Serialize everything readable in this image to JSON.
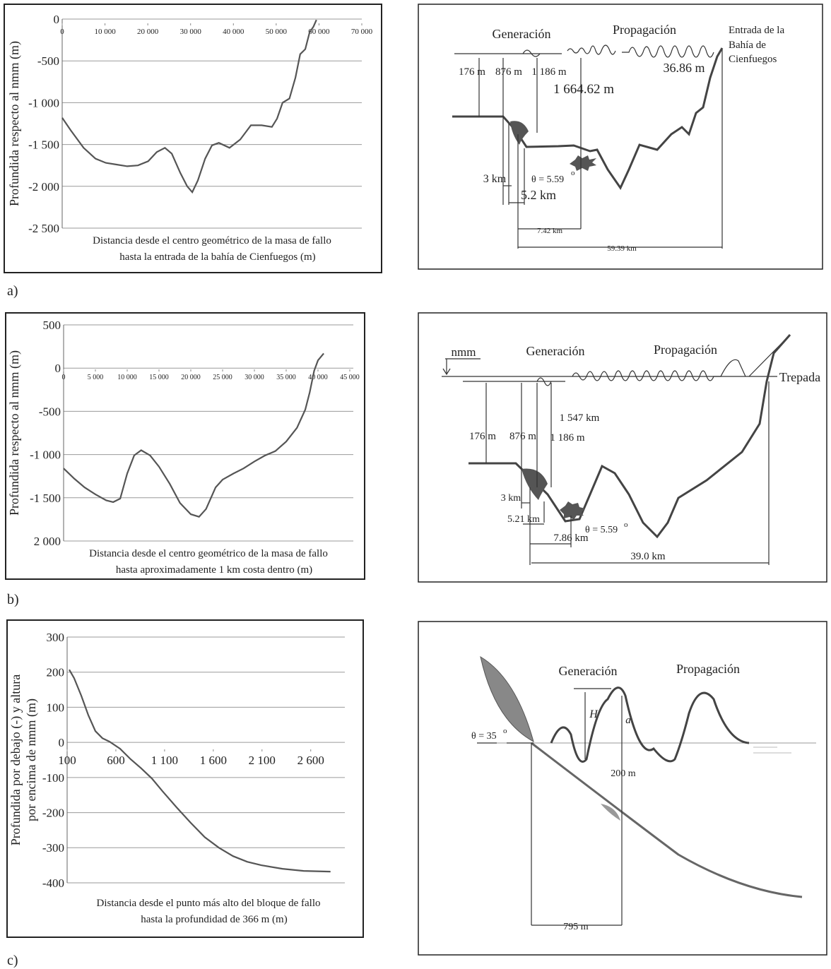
{
  "chart_data": [
    {
      "type": "line",
      "color": "#555555",
      "grid": true,
      "ylabel": [
        "Profundida respecto al nmm (m)"
      ],
      "xlabel": [
        "Distancia desde el centro geométrico de la masa de fallo",
        "hasta la entrada de la bahía de Cienfuegos (m)"
      ],
      "xlim": [
        0,
        70000
      ],
      "ylim": [
        -2500,
        0
      ],
      "xticks": [
        0,
        {
          "value": 10000,
          "label": "10 000"
        },
        {
          "value": 20000,
          "label": "20 000"
        },
        {
          "value": 30000,
          "label": "30 000"
        },
        {
          "value": 40000,
          "label": "40 000"
        },
        {
          "value": 50000,
          "label": "50 000"
        },
        {
          "value": 60000,
          "label": "60 000"
        },
        {
          "value": 70000,
          "label": "70 000"
        }
      ],
      "yticks": [
        0,
        -500,
        {
          "value": -1000,
          "label": "-1 000"
        },
        {
          "value": -1500,
          "label": "-1 500"
        },
        {
          "value": -2000,
          "label": "-2 000"
        },
        {
          "value": -2500,
          "label": "-2 500"
        }
      ],
      "x": [
        0,
        2000,
        5000,
        7800,
        10200,
        12700,
        15200,
        17700,
        20100,
        22100,
        24000,
        25600,
        27600,
        29200,
        30400,
        31700,
        33400,
        35000,
        36600,
        39100,
        41600,
        44100,
        46600,
        49000,
        50200,
        51500,
        53100,
        54500,
        55600,
        56800,
        57800,
        58700,
        59400
      ],
      "values": [
        -1180,
        -1330,
        -1540,
        -1670,
        -1720,
        -1740,
        -1760,
        -1750,
        -1700,
        -1590,
        -1540,
        -1610,
        -1840,
        -2000,
        -2070,
        -1930,
        -1670,
        -1510,
        -1480,
        -1540,
        -1440,
        -1270,
        -1270,
        -1290,
        -1190,
        -1000,
        -950,
        -700,
        -420,
        -360,
        -160,
        -90,
        -10
      ]
    },
    {
      "type": "line",
      "color": "#555555",
      "grid": true,
      "ylabel": [
        "Profundida respecto al nmm (m)"
      ],
      "xlabel": [
        "Distancia desde el centro geométrico de la masa de fallo",
        "hasta aproximadamente 1 km costa dentro (m)"
      ],
      "xlim": [
        0,
        45000
      ],
      "ylim": [
        -2000,
        500
      ],
      "xticks": [
        0,
        {
          "value": 5000,
          "label": "5 000"
        },
        {
          "value": 10000,
          "label": "10 000"
        },
        {
          "value": 15000,
          "label": "15 000"
        },
        {
          "value": 20000,
          "label": "20 000"
        },
        {
          "value": 25000,
          "label": "25 000"
        },
        {
          "value": 30000,
          "label": "30 000"
        },
        {
          "value": 35000,
          "label": "35 000"
        },
        {
          "value": 40000,
          "label": "40 000"
        },
        {
          "value": 45000,
          "label": "45 000"
        }
      ],
      "yticks": [
        500,
        0,
        -500,
        {
          "value": -1000,
          "label": "-1 000"
        },
        {
          "value": -1500,
          "label": "-1 500"
        },
        {
          "value": -2000,
          "label": "2 000"
        }
      ],
      "x": [
        0,
        1700,
        3300,
        5000,
        6700,
        7800,
        8900,
        10000,
        11100,
        12200,
        13600,
        15000,
        16700,
        18300,
        20000,
        21300,
        22400,
        23900,
        25000,
        26700,
        28300,
        30000,
        31700,
        33300,
        35000,
        36700,
        38000,
        38700,
        39400,
        40000,
        40900
      ],
      "values": [
        -1160,
        -1280,
        -1380,
        -1460,
        -1530,
        -1550,
        -1510,
        -1220,
        -1010,
        -950,
        -1010,
        -1140,
        -1340,
        -1560,
        -1690,
        -1720,
        -1630,
        -1380,
        -1290,
        -1220,
        -1160,
        -1080,
        -1010,
        -960,
        -850,
        -690,
        -480,
        -280,
        -30,
        90,
        170
      ]
    },
    {
      "type": "line",
      "color": "#555555",
      "grid": true,
      "ylabel": [
        "Profundida por debajo (-) y altura",
        "por encima de nmm (m)"
      ],
      "xlabel": [
        "Distancia desde el punto más alto del bloque de fallo",
        "hasta la profundidad de 366 m (m)"
      ],
      "xlim": [
        100,
        2950
      ],
      "ylim": [
        -400,
        300
      ],
      "xticks": [
        100,
        600,
        {
          "value": 1100,
          "label": "1 100"
        },
        {
          "value": 1600,
          "label": "1 600"
        },
        {
          "value": 2100,
          "label": "2 100"
        },
        {
          "value": 2600,
          "label": "2 600"
        }
      ],
      "yticks": [
        300,
        200,
        100,
        0,
        -100,
        -200,
        -300,
        -400
      ],
      "x": [
        122,
        172,
        245,
        317,
        390,
        462,
        535,
        643,
        752,
        861,
        970,
        1078,
        1223,
        1368,
        1513,
        1658,
        1803,
        1948,
        2093,
        2310,
        2527,
        2803
      ],
      "values": [
        207,
        183,
        133,
        78,
        32,
        12,
        2,
        -18,
        -48,
        -74,
        -103,
        -139,
        -185,
        -229,
        -270,
        -300,
        -324,
        -340,
        -350,
        -360,
        -366,
        -368
      ]
    }
  ],
  "panel_labels": [
    "a)",
    "b)",
    "c)"
  ],
  "diagrams": [
    {
      "labels": [
        "Generación",
        "Propagación",
        "Entrada de la",
        "Bahía de",
        "Cienfuegos",
        "176 m",
        "876 m",
        "1 186 m",
        "1 664.62 m",
        "36.86 m",
        "3 km",
        "5.2 km",
        "θ = 5.59",
        "o",
        "7.42 km",
        "59.39 km"
      ]
    },
    {
      "labels": [
        "nmm",
        "Generación",
        "Propagación",
        "Trepada",
        "1 547 km",
        "176 m",
        "876 m",
        "1 186 m",
        "3 km",
        "5.21 km",
        "θ = 5.59",
        "o",
        "7.86 km",
        "39.0 km"
      ]
    },
    {
      "labels": [
        "Generación",
        "Propagación",
        "H",
        "a",
        "θ = 35",
        "o",
        "200 m",
        "795 m"
      ]
    }
  ]
}
